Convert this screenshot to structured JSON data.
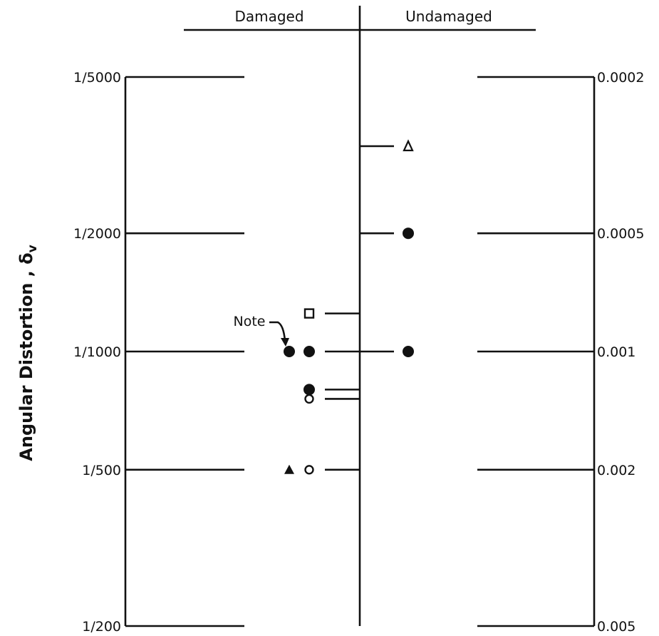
{
  "chart_data": {
    "type": "scatter",
    "scale": "log",
    "ylabel": "Angular Distortion , δ",
    "ylabel_subscript": "v",
    "headers": [
      "Damaged",
      "Undamaged"
    ],
    "left_ticks": [
      "1/5000",
      "1/2000",
      "1/1000",
      "1/500",
      "1/200"
    ],
    "right_ticks": [
      "0.0002",
      "0.0005",
      "0.001",
      "0.002",
      "0.005"
    ],
    "tick_values": [
      0.0002,
      0.0005,
      0.001,
      0.002,
      0.005
    ],
    "ylim": [
      0.0002,
      0.005
    ],
    "annotation": "Note",
    "points": [
      {
        "group": "Damaged",
        "marker": "filled-circle",
        "y": 0.001,
        "noted": true
      },
      {
        "group": "Damaged",
        "marker": "filled-circle",
        "y": 0.001
      },
      {
        "group": "Damaged",
        "marker": "open-square",
        "y": 0.0008
      },
      {
        "group": "Damaged",
        "marker": "filled-circle",
        "y": 0.00125
      },
      {
        "group": "Damaged",
        "marker": "open-circle",
        "y": 0.00132
      },
      {
        "group": "Damaged",
        "marker": "filled-triangle",
        "y": 0.002
      },
      {
        "group": "Damaged",
        "marker": "open-circle",
        "y": 0.002
      },
      {
        "group": "Undamaged",
        "marker": "open-triangle",
        "y": 0.0003
      },
      {
        "group": "Undamaged",
        "marker": "filled-circle",
        "y": 0.0005
      },
      {
        "group": "Undamaged",
        "marker": "filled-circle",
        "y": 0.001
      }
    ]
  }
}
